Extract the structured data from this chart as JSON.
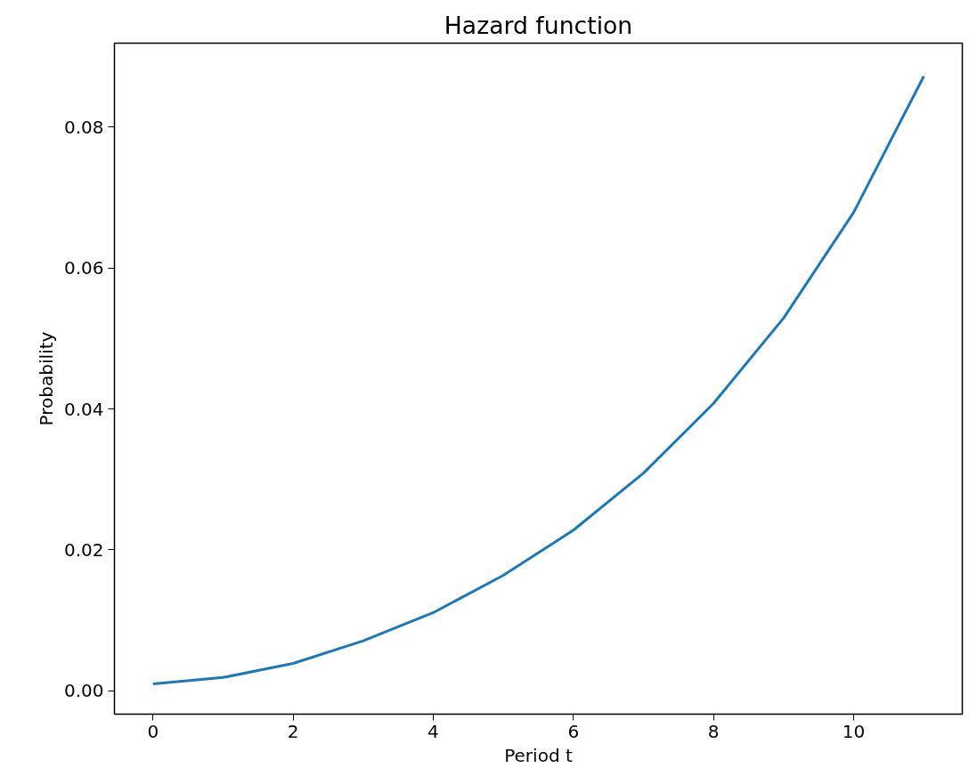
{
  "chart_data": {
    "type": "line",
    "title": "Hazard function",
    "xlabel": "Period t",
    "ylabel": "Probability",
    "x": [
      0,
      1,
      2,
      3,
      4,
      5,
      6,
      7,
      8,
      9,
      10,
      11
    ],
    "series": [
      {
        "color": "#1f77b4",
        "values": [
          0.001,
          0.0019,
          0.0039,
          0.0071,
          0.0111,
          0.0164,
          0.0228,
          0.0309,
          0.0408,
          0.0529,
          0.0679,
          0.0872
        ]
      }
    ],
    "xlim": [
      -0.55,
      11.55
    ],
    "ylim": [
      -0.0033,
      0.0919
    ],
    "xticks": [
      0,
      2,
      4,
      6,
      8,
      10
    ],
    "yticks": [
      {
        "value": 0,
        "label": "0.00"
      },
      {
        "value": 0.02,
        "label": "0.02"
      },
      {
        "value": 0.04,
        "label": "0.04"
      },
      {
        "value": 0.06,
        "label": "0.06"
      },
      {
        "value": 0.08,
        "label": "0.08"
      }
    ],
    "grid": false,
    "line_style": "solid"
  }
}
